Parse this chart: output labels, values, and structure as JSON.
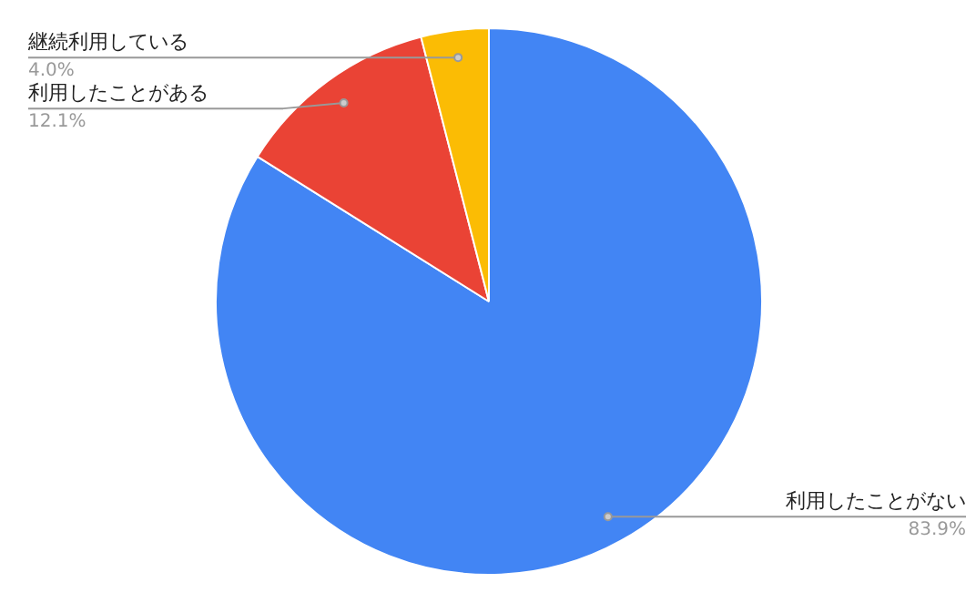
{
  "chart_data": {
    "type": "pie",
    "categories": [
      "利用したことがない",
      "利用したことがある",
      "継続利用している"
    ],
    "values": [
      83.9,
      12.1,
      4.0
    ],
    "colors": [
      "#4285f4",
      "#ea4335",
      "#fbbc04"
    ],
    "value_labels": [
      "83.9%",
      "12.1%",
      "4.0%"
    ]
  }
}
